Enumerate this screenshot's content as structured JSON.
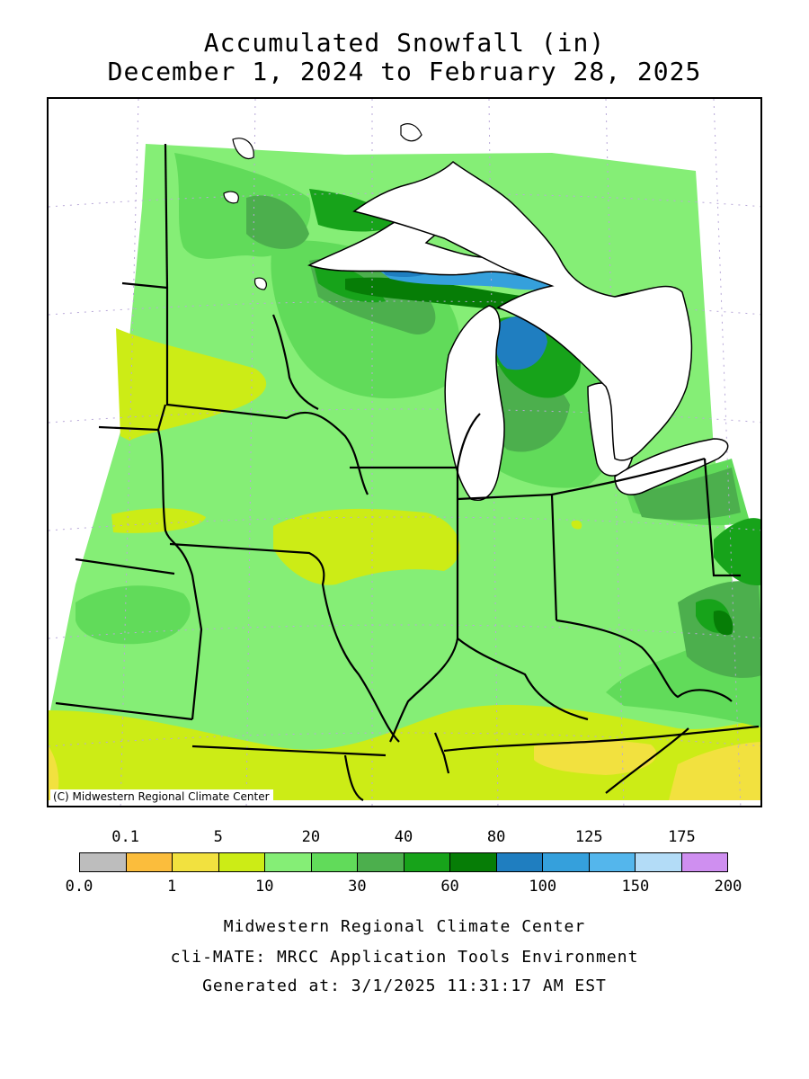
{
  "title": {
    "line1": "Accumulated Snowfall (in)",
    "line2": "December 1, 2024 to February 28, 2025"
  },
  "map": {
    "credit": "(C) Midwestern Regional Climate Center",
    "region": "Midwest United States"
  },
  "legend": {
    "bins": [
      {
        "color": "#bdbdbd"
      },
      {
        "color": "#fbbd3c"
      },
      {
        "color": "#f2e13f"
      },
      {
        "color": "#ccec16"
      },
      {
        "color": "#85ee76"
      },
      {
        "color": "#61db5a"
      },
      {
        "color": "#4caf4d"
      },
      {
        "color": "#17a31a"
      },
      {
        "color": "#067d06"
      },
      {
        "color": "#1f7ec0"
      },
      {
        "color": "#35a0dc"
      },
      {
        "color": "#54b6ec"
      },
      {
        "color": "#b3dcf7"
      },
      {
        "color": "#cf8ff0"
      }
    ],
    "top_ticks": [
      "0.1",
      "5",
      "20",
      "40",
      "80",
      "125",
      "175"
    ],
    "bottom_ticks": [
      "0.0",
      "1",
      "10",
      "30",
      "60",
      "100",
      "150",
      "200"
    ]
  },
  "footer": {
    "line1": "Midwestern Regional Climate Center",
    "line2": "cli-MATE: MRCC Application Tools Environment",
    "line3": "Generated at: 3/1/2025 11:31:17 AM EST"
  }
}
